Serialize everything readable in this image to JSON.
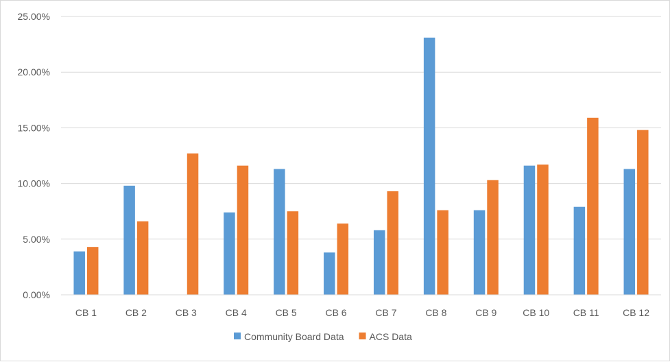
{
  "chart_data": {
    "type": "bar",
    "title": "",
    "xlabel": "",
    "ylabel": "",
    "categories": [
      "CB 1",
      "CB 2",
      "CB 3",
      "CB 4",
      "CB 5",
      "CB 6",
      "CB 7",
      "CB 8",
      "CB 9",
      "CB 10",
      "CB 11",
      "CB 12"
    ],
    "series": [
      {
        "name": "Community Board Data",
        "color": "#5b9bd5",
        "values": [
          3.9,
          9.8,
          0.0,
          7.4,
          11.3,
          3.8,
          5.8,
          23.1,
          7.6,
          11.6,
          7.9,
          11.3
        ]
      },
      {
        "name": "ACS Data",
        "color": "#ed7d31",
        "values": [
          4.3,
          6.6,
          12.7,
          11.6,
          7.5,
          6.4,
          9.3,
          7.6,
          10.3,
          11.7,
          15.9,
          14.8
        ]
      }
    ],
    "ylim": [
      0,
      25
    ],
    "yticks": [
      0,
      5,
      10,
      15,
      20,
      25
    ],
    "ytick_labels": [
      "0.00%",
      "5.00%",
      "10.00%",
      "15.00%",
      "20.00%",
      "25.00%"
    ],
    "grid": true,
    "gridline_color": "#d9d9d9",
    "legend_position": "bottom"
  }
}
